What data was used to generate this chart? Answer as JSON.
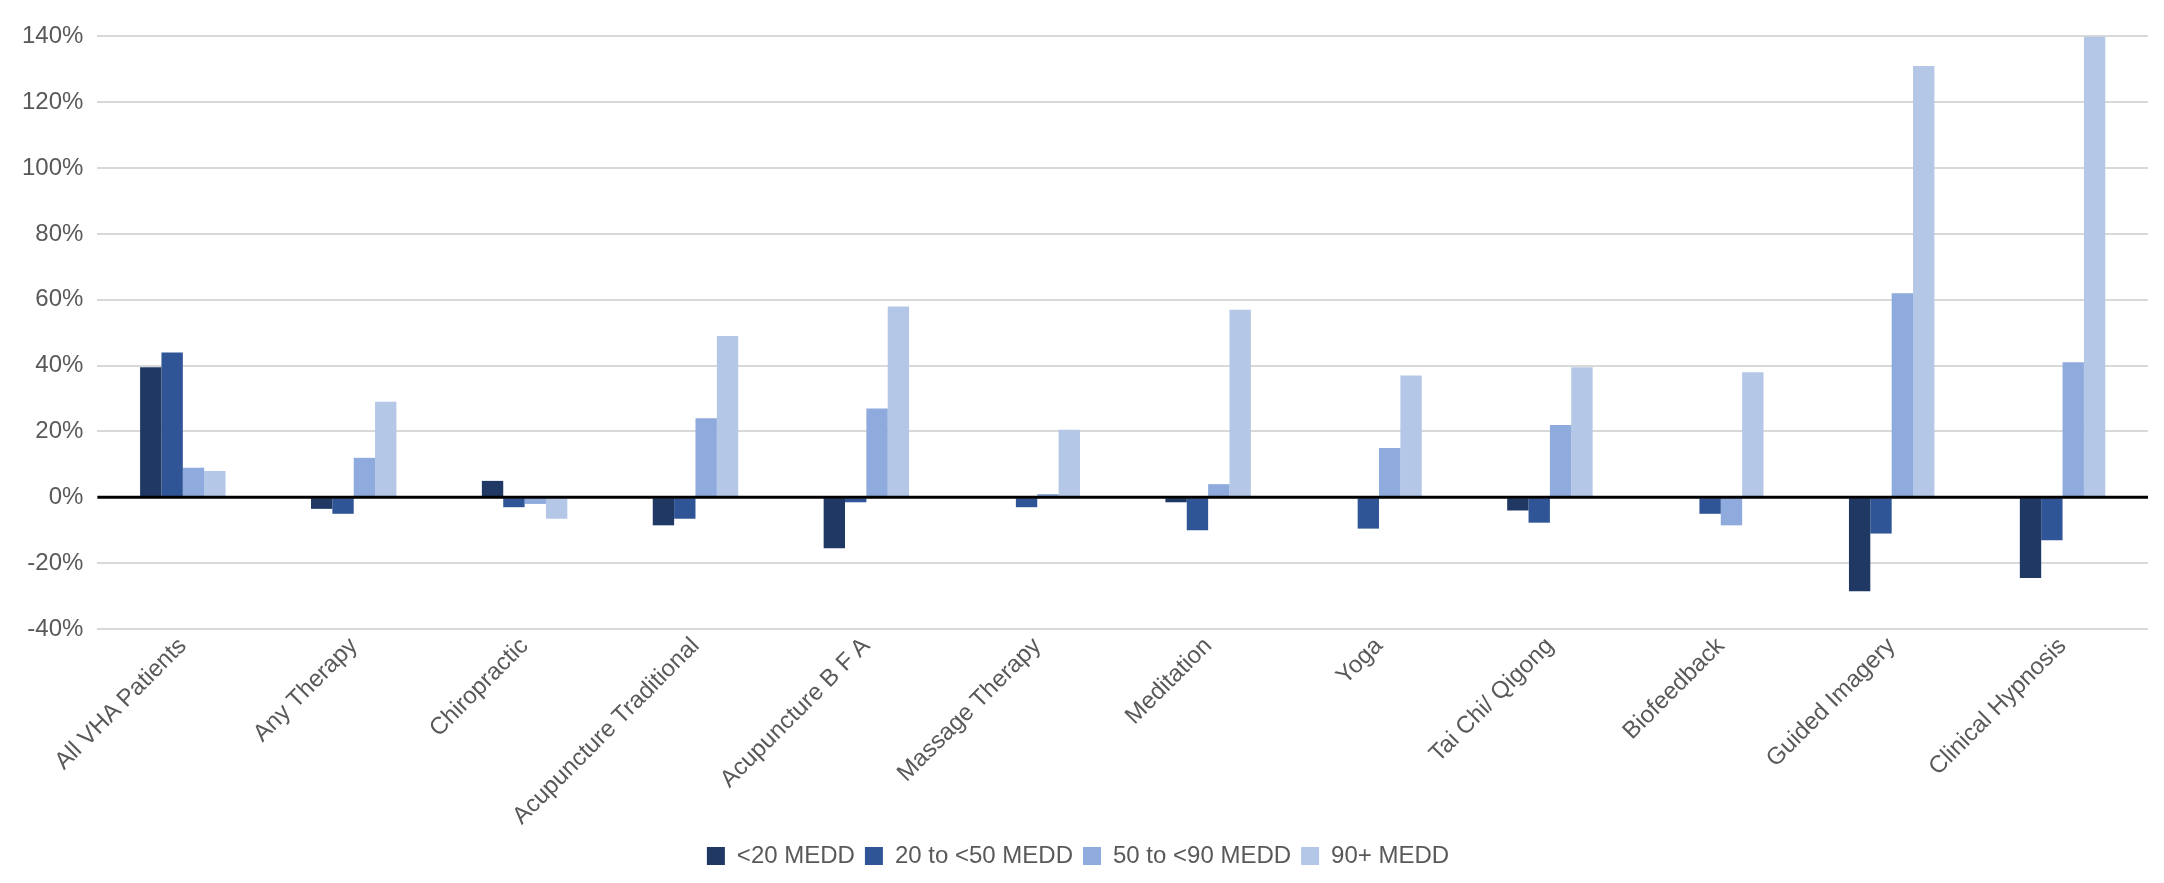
{
  "chart_data": {
    "type": "bar",
    "categories": [
      "All VHA Patients",
      "Any Therapy",
      "Chiropractic",
      "Acupuncture Traditional",
      "Acupuncture B F A",
      "Massage Therapy",
      "Meditation",
      "Yoga",
      "Tai Chi/ Qigong",
      "Biofeedback",
      "Guided Imagery",
      "Clinical Hypnosis"
    ],
    "series": [
      {
        "name": "<20 MEDD",
        "color": "#203864",
        "values": [
          39.5,
          -3.5,
          5,
          -8.5,
          -15.5,
          -0.3,
          -1.5,
          -0.3,
          -4,
          -0.3,
          -28.5,
          -24.5
        ]
      },
      {
        "name": "20 to <50 MEDD",
        "color": "#2f5597",
        "values": [
          44,
          -5,
          -3,
          -6.5,
          -1.5,
          -3,
          -10,
          -9.5,
          -7.7,
          -5,
          -11,
          -13
        ]
      },
      {
        "name": "50 to <90 MEDD",
        "color": "#8faadc",
        "values": [
          9,
          12,
          -2,
          24,
          27,
          1,
          4,
          15,
          22,
          -8.5,
          62,
          41
        ]
      },
      {
        "name": "90+ MEDD",
        "color": "#b4c7e7",
        "values": [
          8,
          29,
          -6.5,
          49,
          58,
          20.5,
          57,
          37,
          39.5,
          38,
          131,
          140
        ]
      }
    ],
    "ylim": [
      -40,
      140
    ],
    "yticks": [
      {
        "value": -40,
        "label": "-40%"
      },
      {
        "value": -20,
        "label": "-20%"
      },
      {
        "value": 0,
        "label": "0%"
      },
      {
        "value": 20,
        "label": "20%"
      },
      {
        "value": 40,
        "label": "40%"
      },
      {
        "value": 60,
        "label": "60%"
      },
      {
        "value": 80,
        "label": "80%"
      },
      {
        "value": 100,
        "label": "100%"
      },
      {
        "value": 120,
        "label": "120%"
      },
      {
        "value": 140,
        "label": "140%"
      }
    ],
    "grid": "y",
    "legend": "bottom"
  }
}
